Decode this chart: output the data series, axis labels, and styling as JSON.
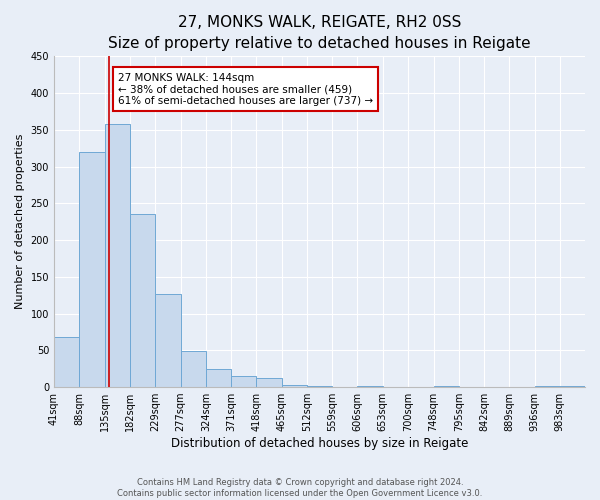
{
  "title": "27, MONKS WALK, REIGATE, RH2 0SS",
  "subtitle": "Size of property relative to detached houses in Reigate",
  "xlabel": "Distribution of detached houses by size in Reigate",
  "ylabel": "Number of detached properties",
  "bin_labels": [
    "41sqm",
    "88sqm",
    "135sqm",
    "182sqm",
    "229sqm",
    "277sqm",
    "324sqm",
    "371sqm",
    "418sqm",
    "465sqm",
    "512sqm",
    "559sqm",
    "606sqm",
    "653sqm",
    "700sqm",
    "748sqm",
    "795sqm",
    "842sqm",
    "889sqm",
    "936sqm",
    "983sqm"
  ],
  "bin_edges": [
    41,
    88,
    135,
    182,
    229,
    277,
    324,
    371,
    418,
    465,
    512,
    559,
    606,
    653,
    700,
    748,
    795,
    842,
    889,
    936,
    983,
    1030
  ],
  "bar_heights": [
    68,
    320,
    358,
    235,
    127,
    49,
    25,
    15,
    12,
    3,
    1,
    0,
    1,
    0,
    0,
    1,
    0,
    0,
    0,
    1,
    1
  ],
  "bar_facecolor": "#c8d9ed",
  "bar_edgecolor": "#6fa8d5",
  "property_value": 144,
  "vline_color": "#cc0000",
  "annotation_line1": "27 MONKS WALK: 144sqm",
  "annotation_line2": "← 38% of detached houses are smaller (459)",
  "annotation_line3": "61% of semi-detached houses are larger (737) →",
  "annotation_boxcolor": "white",
  "annotation_boxedge": "#cc0000",
  "ylim": [
    0,
    450
  ],
  "yticks": [
    0,
    50,
    100,
    150,
    200,
    250,
    300,
    350,
    400,
    450
  ],
  "background_color": "#e8eef7",
  "footer_line1": "Contains HM Land Registry data © Crown copyright and database right 2024.",
  "footer_line2": "Contains public sector information licensed under the Open Government Licence v3.0.",
  "title_fontsize": 11,
  "subtitle_fontsize": 9.5,
  "xlabel_fontsize": 8.5,
  "ylabel_fontsize": 8,
  "tick_fontsize": 7,
  "annotation_fontsize": 7.5,
  "footer_fontsize": 6
}
